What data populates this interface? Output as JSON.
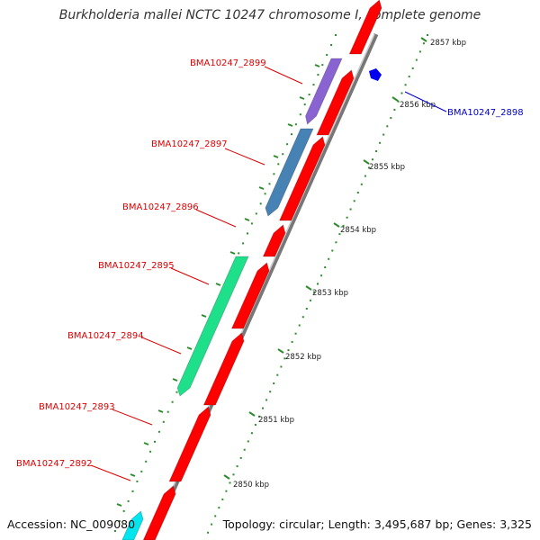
{
  "title": "Burkholderia mallei NCTC 10247 chromosome I, complete genome",
  "accession": "Accession: NC_009080",
  "topology": "Topology: circular; Length: 3,495,687 bp; Genes: 3,325",
  "colors": {
    "forward_gene": "#ff0000",
    "backbone": "#999999",
    "scale_dots": "#2e8b2e",
    "label_red": "#dd0000",
    "label_blue": "#0000cc",
    "gene_2899": "#8a63d2",
    "gene_2897": "#4682b4",
    "gene_2895": "#1fe08a",
    "gene_2898": "#0000ee",
    "gene_cyan": "#00e5ee"
  },
  "scale_labels": [
    {
      "text": "2857 kbp"
    },
    {
      "text": "2856 kbp"
    },
    {
      "text": "2855 kbp"
    },
    {
      "text": "2854 kbp"
    },
    {
      "text": "2853 kbp"
    },
    {
      "text": "2852 kbp"
    },
    {
      "text": "2851 kbp"
    },
    {
      "text": "2850 kbp"
    }
  ],
  "gene_labels": [
    {
      "text": "BMA10247_2899"
    },
    {
      "text": "BMA10247_2898"
    },
    {
      "text": "BMA10247_2897"
    },
    {
      "text": "BMA10247_2896"
    },
    {
      "text": "BMA10247_2895"
    },
    {
      "text": "BMA10247_2894"
    },
    {
      "text": "BMA10247_2893"
    },
    {
      "text": "BMA10247_2892"
    }
  ]
}
